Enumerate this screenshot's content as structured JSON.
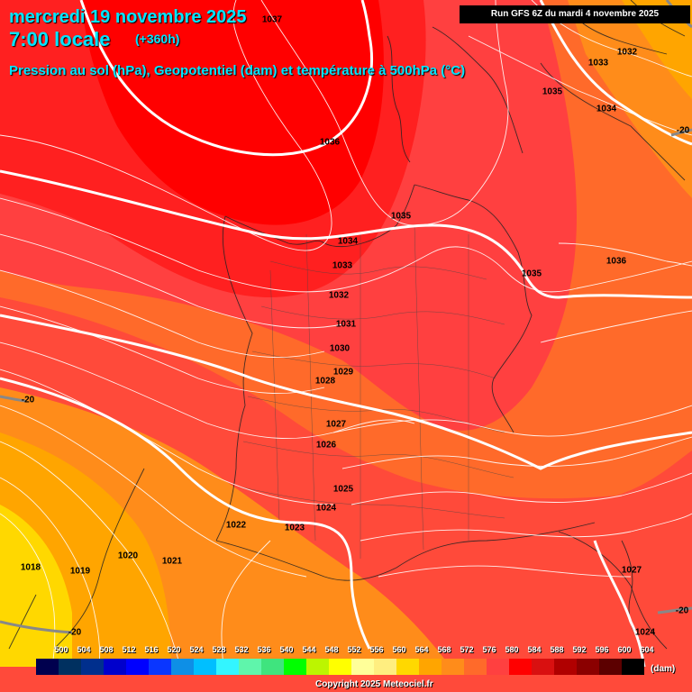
{
  "header": {
    "date": "mercredi 19 novembre 2025",
    "time": "7:00 locale",
    "lead": "(+360h)",
    "subtitle": "Pression au sol (hPa), Geopotentiel (dam) et température à 500hPa (°C)",
    "run": "Run GFS 6Z du mardi 4 novembre 2025"
  },
  "isobar_labels": [
    "1037",
    "1036",
    "1035",
    "1034",
    "1033",
    "1032",
    "1031",
    "1030",
    "1029",
    "1028",
    "1027",
    "1026",
    "1025",
    "1024",
    "1023",
    "1022",
    "1021",
    "1020",
    "1019",
    "1018",
    "1033",
    "1032",
    "1035",
    "1034",
    "1036",
    "1035",
    "1027",
    "1024"
  ],
  "temperature_labels": [
    "-20",
    "-20",
    "-20",
    "-20"
  ],
  "legend": {
    "values": [
      "500",
      "504",
      "508",
      "512",
      "516",
      "520",
      "524",
      "528",
      "532",
      "536",
      "540",
      "544",
      "548",
      "552",
      "556",
      "560",
      "564",
      "568",
      "572",
      "576",
      "580",
      "584",
      "588",
      "592",
      "596",
      "600",
      "604"
    ],
    "colors": [
      "#00004e",
      "#003060",
      "#002f8d",
      "#0000cc",
      "#0000ff",
      "#0a36ff",
      "#0e8fe6",
      "#00bfff",
      "#33f5ff",
      "#5ff5ab",
      "#3fe47e",
      "#00ff00",
      "#bcf500",
      "#ffff00",
      "#ffff99",
      "#ffee80",
      "#ffd800",
      "#ffa500",
      "#ff8c1a",
      "#ff6a2a",
      "#ff4040",
      "#ff0000",
      "#d91010",
      "#b00000",
      "#8b0000",
      "#5c0000",
      "#000000"
    ],
    "unit": "(dam)"
  },
  "copyright": "Copyright 2025 Meteociel.fr"
}
